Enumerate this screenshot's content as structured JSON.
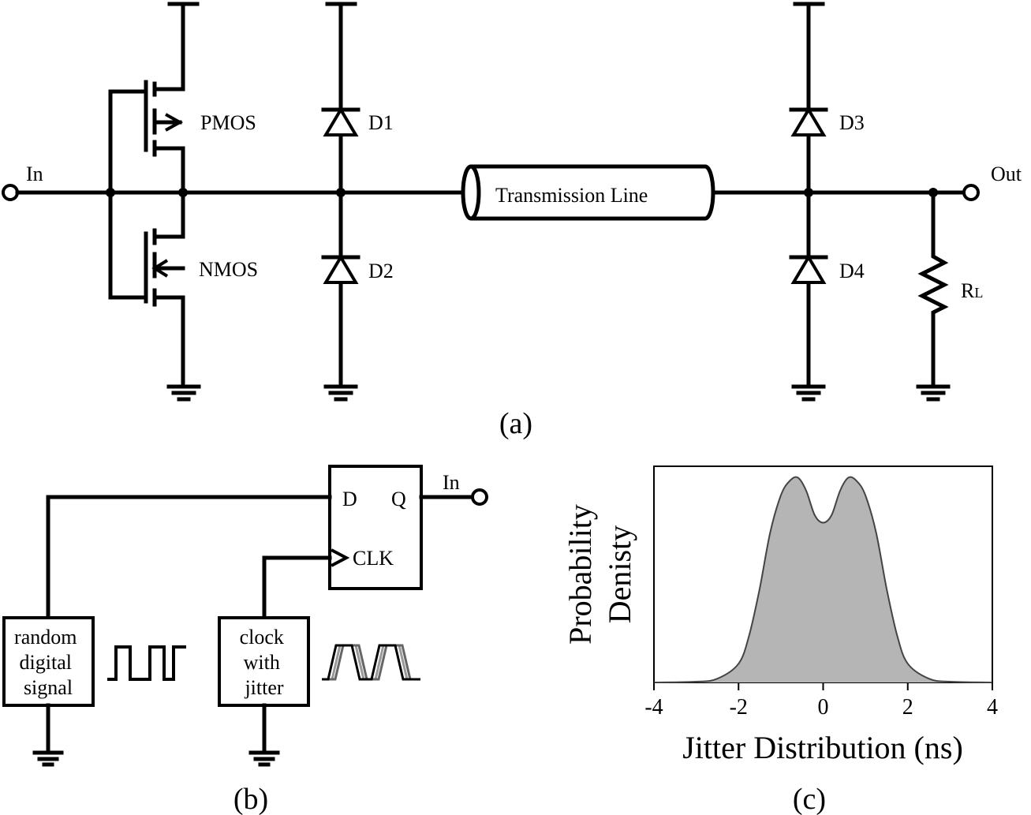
{
  "circuit_a": {
    "input_label": "In",
    "output_label": "Out",
    "pmos_label": "PMOS",
    "nmos_label": "NMOS",
    "d1_label": "D1",
    "d2_label": "D2",
    "d3_label": "D3",
    "d4_label": "D4",
    "tline_label": "Transmission Line",
    "rl_main": "R",
    "rl_sub": "L",
    "caption": "(a)"
  },
  "circuit_b": {
    "ff_d": "D",
    "ff_q": "Q",
    "ff_clk": "CLK",
    "output_label": "In",
    "random_block": [
      "random",
      "digital",
      "signal"
    ],
    "clock_block": [
      "clock",
      "with",
      "jitter"
    ],
    "caption": "(b)"
  },
  "plot_c": {
    "caption": "(c)",
    "colors": {
      "fill": "#b5b5b5",
      "line": "#444444",
      "frame": "#000000"
    }
  },
  "chart_data": {
    "type": "area",
    "title": "",
    "xlabel": "Jitter Distribution (ns)",
    "ylabel": [
      "Probability",
      "Denisty"
    ],
    "xlim": [
      -4,
      4
    ],
    "ylim": [
      0,
      1.15
    ],
    "xticks": [
      -4,
      -2,
      0,
      2,
      4
    ],
    "yticks_shown": false,
    "grid": false,
    "series": [
      {
        "x": [
          -4.0,
          -3.0,
          -2.5,
          -2.0,
          -1.75,
          -1.5,
          -1.25,
          -1.0,
          -0.8,
          -0.6,
          -0.4,
          -0.2,
          0.0,
          0.2,
          0.4,
          0.6,
          0.8,
          1.0,
          1.25,
          1.5,
          1.75,
          2.0,
          2.5,
          3.0,
          4.0
        ],
        "y": [
          0.0,
          0.004,
          0.02,
          0.1,
          0.25,
          0.5,
          0.8,
          0.995,
          1.07,
          1.09,
          1.02,
          0.89,
          0.85,
          0.89,
          1.02,
          1.09,
          1.07,
          0.995,
          0.8,
          0.5,
          0.25,
          0.1,
          0.02,
          0.004,
          0.0
        ]
      }
    ]
  }
}
